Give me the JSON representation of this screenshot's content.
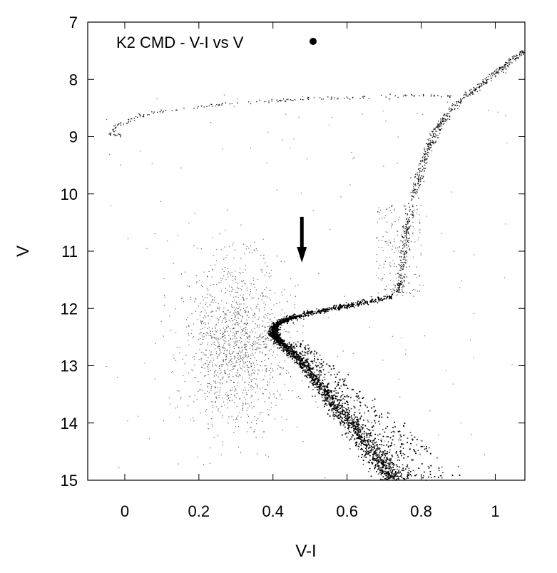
{
  "chart_data": {
    "type": "scatter",
    "title": "",
    "xlabel": "V-I",
    "ylabel": "V",
    "xlim": [
      -0.1,
      1.08
    ],
    "ylim": [
      15,
      7
    ],
    "y_inverted": true,
    "x_ticks": [
      0,
      0.2,
      0.4,
      0.6,
      0.8,
      1
    ],
    "x_tick_labels": [
      "0",
      "0.2",
      "0.4",
      "0.6",
      "0.8",
      "1"
    ],
    "y_ticks": [
      7,
      8,
      9,
      10,
      11,
      12,
      13,
      14,
      15
    ],
    "y_tick_labels": [
      "7",
      "8",
      "9",
      "10",
      "11",
      "12",
      "13",
      "14",
      "15"
    ],
    "grid": false,
    "legend": {
      "position": "top-left",
      "entries": [
        {
          "label": "K2 CMD - V-I vs V",
          "marker": "dot",
          "color": "#000000"
        }
      ]
    },
    "annotations": [
      {
        "type": "arrow",
        "direction": "down",
        "x": 0.478,
        "y_start": 10.4,
        "y_end": 11.2
      }
    ],
    "series": [
      {
        "name": "K2 CMD - V-I vs V",
        "color": "#000000",
        "main_sequence": [
          [
            0.73,
            15.0
          ],
          [
            0.7,
            14.75
          ],
          [
            0.67,
            14.5
          ],
          [
            0.64,
            14.25
          ],
          [
            0.61,
            14.0
          ],
          [
            0.575,
            13.75
          ],
          [
            0.545,
            13.5
          ],
          [
            0.515,
            13.25
          ],
          [
            0.485,
            13.0
          ],
          [
            0.455,
            12.8
          ],
          [
            0.43,
            12.65
          ],
          [
            0.41,
            12.52
          ],
          [
            0.4,
            12.42
          ],
          [
            0.41,
            12.28
          ],
          [
            0.44,
            12.18
          ],
          [
            0.5,
            12.08
          ],
          [
            0.58,
            11.98
          ],
          [
            0.66,
            11.88
          ],
          [
            0.73,
            11.78
          ]
        ],
        "red_giant_branch": [
          [
            0.735,
            11.75
          ],
          [
            0.745,
            11.5
          ],
          [
            0.755,
            11.0
          ],
          [
            0.765,
            10.5
          ],
          [
            0.78,
            10.0
          ],
          [
            0.8,
            9.6
          ],
          [
            0.82,
            9.2
          ],
          [
            0.84,
            8.9
          ],
          [
            0.87,
            8.6
          ],
          [
            0.91,
            8.35
          ],
          [
            0.96,
            8.1
          ],
          [
            1.01,
            7.85
          ],
          [
            1.05,
            7.65
          ],
          [
            1.08,
            7.5
          ]
        ],
        "horizontal_branch": [
          [
            0.88,
            8.3
          ],
          [
            0.8,
            8.28
          ],
          [
            0.7,
            8.3
          ],
          [
            0.6,
            8.32
          ],
          [
            0.5,
            8.34
          ],
          [
            0.4,
            8.37
          ],
          [
            0.3,
            8.42
          ],
          [
            0.2,
            8.48
          ],
          [
            0.1,
            8.55
          ],
          [
            0.03,
            8.65
          ],
          [
            -0.02,
            8.82
          ],
          [
            -0.04,
            8.95
          ],
          [
            0.0,
            9.0
          ]
        ]
      }
    ]
  }
}
